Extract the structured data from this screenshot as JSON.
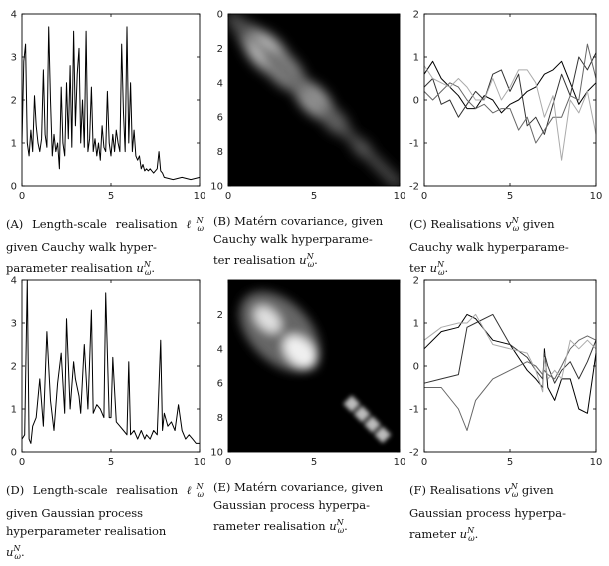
{
  "captions": [
    {
      "tag": "(a)",
      "text": "Length-scale realisation ℓ",
      "mid": " given Cauchy walk hyper-parameter realisation ",
      "sym1": "ℓ",
      "sym2": "u",
      "full": "(a) Length-scale realisation ℓωN given Cauchy walk hyper-parameter realisation uωN."
    },
    {
      "tag": "(b)",
      "full": "(b) Matérn covariance, given Cauchy walk hyperparameter realisation uωN."
    },
    {
      "tag": "(c)",
      "full": "(c) Realisations vωN given Cauchy walk hyperparameter uωN."
    },
    {
      "tag": "(d)",
      "full": "(d) Length-scale realisation ℓωN given Gaussian process hyperparameter realisation uωN."
    },
    {
      "tag": "(e)",
      "full": "(e) Matérn covariance, given Gaussian process hyperparameter realisation uωN."
    },
    {
      "tag": "(f)",
      "full": "(f) Realisations vωN given Gaussian process hyperparameter uωN."
    }
  ],
  "caption_lines": {
    "a": [
      "(A) Length-scale realisation",
      "ℓ",
      "N",
      "ω",
      " given Cauchy walk hyper-",
      "parameter realisation ",
      "u",
      "N",
      "ω",
      "."
    ],
    "b": [
      "(B) Matérn covariance, given",
      "Cauchy walk hyperparame-",
      "ter realisation ",
      "u",
      "N",
      "ω",
      "."
    ],
    "c": [
      "(C) Realisations ",
      "v",
      "N",
      "ω",
      " given",
      "Cauchy walk hyperparame-",
      "ter ",
      "u",
      "N",
      "ω",
      "."
    ],
    "d": [
      "(D) Length-scale realisation",
      "ℓ",
      "N",
      "ω",
      " given Gaussian process",
      "hyperparameter realisation",
      "u",
      "N",
      "ω",
      "."
    ],
    "e": [
      "(E) Matérn covariance, given",
      "Gaussian process hyperpa-",
      "rameter realisation ",
      "u",
      "N",
      "ω",
      "."
    ],
    "f": [
      "(F) Realisations ",
      "v",
      "N",
      "ω",
      " given",
      "Gaussian process hyperpa-",
      "rameter ",
      "u",
      "N",
      "ω",
      "."
    ]
  },
  "chart_data": [
    {
      "type": "line",
      "panel": "A",
      "xlim": [
        0,
        10
      ],
      "ylim": [
        0,
        4
      ],
      "xticks": [
        "0",
        "5",
        "10"
      ],
      "yticks": [
        "0",
        "1",
        "2",
        "3",
        "4"
      ],
      "series": [
        {
          "x": [
            0,
            0.1,
            0.2,
            0.3,
            0.4,
            0.5,
            0.6,
            0.7,
            0.8,
            0.9,
            1.0,
            1.1,
            1.2,
            1.3,
            1.4,
            1.5,
            1.6,
            1.7,
            1.8,
            1.9,
            2.0,
            2.1,
            2.2,
            2.3,
            2.4,
            2.5,
            2.6,
            2.7,
            2.8,
            2.9,
            3.0,
            3.1,
            3.2,
            3.3,
            3.4,
            3.5,
            3.6,
            3.7,
            3.8,
            3.9,
            4.0,
            4.1,
            4.2,
            4.3,
            4.4,
            4.5,
            4.6,
            4.7,
            4.8,
            4.9,
            5.0,
            5.1,
            5.2,
            5.3,
            5.4,
            5.5,
            5.6,
            5.7,
            5.8,
            5.9,
            6.0,
            6.1,
            6.2,
            6.3,
            6.4,
            6.5,
            6.6,
            6.7,
            6.8,
            6.9,
            7.0,
            7.1,
            7.2,
            7.3,
            7.4,
            7.5,
            7.6,
            7.7,
            7.8,
            7.9,
            8.0,
            8.5,
            9.0,
            9.5,
            10.0
          ],
          "y": [
            1.0,
            2.9,
            3.3,
            1.0,
            0.7,
            1.3,
            0.8,
            2.1,
            1.4,
            1.0,
            0.8,
            1.1,
            2.7,
            1.2,
            0.9,
            3.7,
            2.0,
            0.7,
            1.2,
            0.8,
            1.0,
            0.4,
            2.3,
            1.0,
            0.7,
            2.4,
            1.1,
            2.8,
            0.9,
            3.6,
            1.4,
            2.6,
            3.2,
            1.0,
            2.0,
            0.9,
            3.6,
            0.8,
            1.1,
            2.3,
            0.8,
            1.1,
            0.7,
            1.0,
            0.6,
            1.4,
            0.9,
            0.8,
            2.2,
            1.0,
            0.7,
            1.2,
            0.8,
            1.3,
            1.0,
            0.8,
            3.3,
            1.7,
            0.8,
            3.7,
            1.0,
            2.4,
            0.8,
            1.3,
            0.7,
            0.6,
            0.7,
            0.4,
            0.5,
            0.35,
            0.4,
            0.35,
            0.4,
            0.35,
            0.3,
            0.35,
            0.4,
            0.8,
            0.35,
            0.3,
            0.2,
            0.15,
            0.2,
            0.15,
            0.2
          ]
        }
      ]
    },
    {
      "type": "heatmap",
      "panel": "B",
      "xlim": [
        0,
        10
      ],
      "ylim": [
        0,
        10
      ],
      "xticks": [
        "0",
        "5",
        "10"
      ],
      "yticks": [
        "0",
        "2",
        "4",
        "6",
        "8",
        "10"
      ]
    },
    {
      "type": "line",
      "panel": "C",
      "xlim": [
        0,
        10
      ],
      "ylim": [
        -2,
        2
      ],
      "xticks": [
        "0",
        "5",
        "10"
      ],
      "yticks": [
        "-2",
        "-1",
        "0",
        "1",
        "2"
      ],
      "series": [
        {
          "color": "#000000",
          "x": [
            0,
            0.5,
            1,
            1.5,
            2,
            2.5,
            3,
            3.5,
            4,
            4.5,
            5,
            5.5,
            6,
            6.5,
            7,
            7.5,
            8,
            8.5,
            9,
            9.5,
            10
          ],
          "y": [
            0.6,
            0.9,
            0.5,
            0.3,
            0.1,
            -0.2,
            -0.2,
            0.1,
            0.0,
            -0.3,
            -0.1,
            0.0,
            0.2,
            0.3,
            0.6,
            0.7,
            0.9,
            0.4,
            -0.1,
            0.2,
            0.4
          ]
        },
        {
          "color": "#333333",
          "x": [
            0,
            0.5,
            1,
            1.5,
            2,
            2.5,
            3,
            3.5,
            4,
            4.5,
            5,
            5.5,
            6,
            6.5,
            7,
            7.5,
            8,
            8.5,
            9,
            9.5,
            10
          ],
          "y": [
            0.3,
            0.5,
            -0.1,
            0.0,
            -0.4,
            -0.1,
            0.2,
            0.0,
            0.6,
            0.7,
            0.2,
            0.6,
            -0.6,
            -0.4,
            -0.8,
            -0.1,
            0.6,
            0.1,
            1.0,
            0.7,
            1.1
          ]
        },
        {
          "color": "#666666",
          "x": [
            0,
            0.5,
            1,
            1.5,
            2,
            2.5,
            3,
            3.5,
            4,
            4.5,
            5,
            5.5,
            6,
            6.5,
            7,
            7.5,
            8,
            8.5,
            9,
            9.5,
            10
          ],
          "y": [
            0.2,
            0.0,
            0.2,
            0.4,
            0.3,
            0.0,
            -0.2,
            -0.1,
            -0.3,
            -0.2,
            -0.2,
            -0.7,
            -0.4,
            -1.0,
            -0.7,
            -0.4,
            -0.4,
            0.1,
            0.0,
            1.3,
            0.5
          ]
        },
        {
          "color": "#aaaaaa",
          "x": [
            0,
            0.5,
            1,
            1.5,
            2,
            2.5,
            3,
            3.5,
            4,
            4.5,
            5,
            5.5,
            6,
            6.5,
            7,
            7.5,
            8,
            8.5,
            9,
            9.5,
            10
          ],
          "y": [
            0.8,
            0.5,
            0.4,
            0.3,
            0.5,
            0.3,
            0.0,
            0.0,
            0.5,
            0.0,
            0.3,
            0.7,
            0.7,
            0.4,
            -0.4,
            0.1,
            -1.4,
            0.0,
            -0.3,
            0.2,
            -0.8
          ]
        }
      ]
    },
    {
      "type": "line",
      "panel": "D",
      "xlim": [
        0,
        10
      ],
      "ylim": [
        0,
        4
      ],
      "xticks": [
        "0",
        "5",
        "10"
      ],
      "yticks": [
        "0",
        "1",
        "2",
        "3",
        "4"
      ],
      "series": [
        {
          "x": [
            0,
            0.15,
            0.3,
            0.4,
            0.5,
            0.6,
            0.8,
            1.0,
            1.2,
            1.4,
            1.6,
            1.8,
            2.0,
            2.2,
            2.4,
            2.5,
            2.7,
            2.9,
            3.0,
            3.2,
            3.3,
            3.5,
            3.7,
            3.9,
            4.0,
            4.2,
            4.4,
            4.6,
            4.7,
            4.9,
            5.0,
            5.1,
            5.3,
            5.5,
            5.7,
            5.9,
            6.0,
            6.1,
            6.3,
            6.5,
            6.7,
            6.9,
            7.0,
            7.2,
            7.4,
            7.6,
            7.8,
            7.9,
            8.0,
            8.2,
            8.4,
            8.6,
            8.8,
            9.0,
            9.2,
            9.4,
            9.6,
            9.8,
            10.0
          ],
          "y": [
            0.3,
            0.4,
            4.0,
            0.3,
            0.2,
            0.6,
            0.8,
            1.7,
            0.6,
            2.8,
            1.2,
            0.5,
            1.6,
            2.3,
            0.9,
            3.1,
            1.0,
            2.1,
            1.7,
            1.3,
            0.9,
            2.5,
            1.0,
            3.3,
            0.9,
            1.1,
            1.0,
            0.8,
            3.7,
            0.8,
            0.8,
            2.2,
            0.7,
            0.6,
            0.5,
            0.4,
            2.1,
            0.4,
            0.5,
            0.3,
            0.5,
            0.3,
            0.4,
            0.3,
            0.5,
            0.4,
            2.6,
            0.5,
            0.9,
            0.6,
            0.7,
            0.5,
            1.1,
            0.5,
            0.3,
            0.4,
            0.3,
            0.2,
            0.2
          ]
        }
      ]
    },
    {
      "type": "heatmap",
      "panel": "E",
      "xlim": [
        0,
        10
      ],
      "ylim": [
        0,
        10
      ],
      "xticks": [
        "0",
        "5",
        "10"
      ],
      "yticks": [
        "2",
        "4",
        "6",
        "8",
        "10"
      ]
    },
    {
      "type": "line",
      "panel": "F",
      "xlim": [
        0,
        10
      ],
      "ylim": [
        -2,
        2
      ],
      "xticks": [
        "0",
        "5",
        "10"
      ],
      "yticks": [
        "-2",
        "-1",
        "0",
        "1",
        "2"
      ],
      "series": [
        {
          "color": "#000000",
          "x": [
            0,
            1,
            2,
            2.5,
            3,
            4,
            5,
            6,
            6.5,
            6.9,
            7.0,
            7.2,
            7.6,
            8,
            8.5,
            9,
            9.5,
            10
          ],
          "y": [
            0.4,
            0.8,
            0.9,
            1.2,
            1.1,
            0.6,
            0.5,
            -0.1,
            -0.3,
            -0.5,
            0.4,
            -0.5,
            -0.8,
            -0.3,
            -0.3,
            -1.0,
            -1.1,
            0.3
          ]
        },
        {
          "color": "#333333",
          "x": [
            0,
            1,
            2,
            2.5,
            3,
            4,
            5,
            6,
            6.5,
            6.9,
            7.0,
            7.2,
            7.6,
            8,
            8.5,
            9,
            9.5,
            10
          ],
          "y": [
            -0.4,
            -0.3,
            -0.2,
            0.9,
            1.0,
            1.2,
            0.5,
            0.2,
            -0.1,
            -0.3,
            0.3,
            0.0,
            -0.4,
            -0.1,
            0.1,
            -0.3,
            0.1,
            0.6
          ]
        },
        {
          "color": "#666666",
          "x": [
            0,
            1,
            2,
            2.5,
            3,
            4,
            5,
            6,
            6.5,
            6.9,
            7.0,
            7.2,
            7.6,
            8,
            8.5,
            9,
            9.5,
            10
          ],
          "y": [
            -0.5,
            -0.5,
            -1.0,
            -1.5,
            -0.8,
            -0.3,
            -0.1,
            0.1,
            0.0,
            -0.2,
            -0.1,
            -0.2,
            -0.3,
            0.0,
            0.4,
            0.6,
            0.7,
            0.6
          ]
        },
        {
          "color": "#aaaaaa",
          "x": [
            0,
            1,
            2,
            2.5,
            3,
            4,
            5,
            6,
            6.5,
            6.9,
            7.0,
            7.2,
            7.6,
            8,
            8.5,
            9,
            9.5,
            10
          ],
          "y": [
            0.6,
            0.9,
            1.0,
            1.0,
            1.2,
            0.5,
            0.4,
            0.3,
            -0.1,
            -0.6,
            0.2,
            -0.3,
            -0.1,
            -0.3,
            0.6,
            0.4,
            0.6,
            0.4
          ]
        }
      ]
    }
  ]
}
